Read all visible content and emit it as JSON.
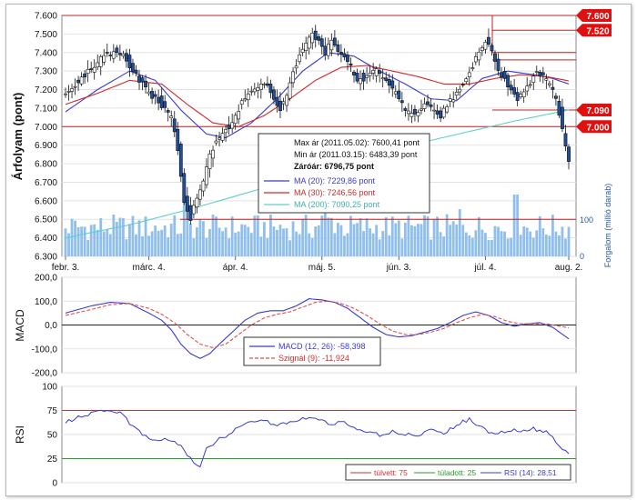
{
  "colors": {
    "candle_up": "#ffffff",
    "candle_down": "#1f4e9c",
    "ma20": "#3a3ad0",
    "ma30": "#d02a2a",
    "ma200": "#5fd0c8",
    "volume": "#8fbfea",
    "macd": "#3a3ad0",
    "signal": "#e0504a",
    "rsi": "#3a3ad0",
    "overbought": "#d03030",
    "oversold": "#2a9a2a",
    "price_tag": "#e01010"
  },
  "price_panel": {
    "ylabel": "Árfolyam (pont)",
    "y_ticks": [
      "6.300",
      "6.400",
      "6.500",
      "6.600",
      "6.700",
      "6.800",
      "6.900",
      "7.000",
      "7.100",
      "7.200",
      "7.300",
      "7.400",
      "7.500",
      "7.600"
    ],
    "x_ticks": [
      "febr. 3.",
      "márc. 4.",
      "ápr. 4.",
      "máj. 5.",
      "jún. 3.",
      "júl. 4.",
      "aug. 2."
    ],
    "volume_label": "Forgalom (millió darab)",
    "volume_ticks": [
      "0",
      "100"
    ],
    "price_tags": [
      "7.600",
      "7.520",
      "7.090",
      "7.000"
    ],
    "legend": {
      "max": "Max ár (2011.05.02): 7600,41 pont",
      "min": "Min ár (2011.03.15): 6483,39 pont",
      "close": "Záróár: 6796,75 pont",
      "ma20": "MA (20): 7229,86 pont",
      "ma30": "MA (30): 7246,56 pont",
      "ma200": "MA (200): 7090,25 pont"
    }
  },
  "macd_panel": {
    "ylabel": "MACD",
    "y_ticks": [
      "200,0",
      "100,0",
      "0,0",
      "-100,0",
      "-200,0"
    ],
    "legend": {
      "macd": "MACD (12, 26): -58,398",
      "signal": "Szignál (9): -11,924"
    }
  },
  "rsi_panel": {
    "ylabel": "RSI",
    "y_ticks": [
      "100",
      "75",
      "50",
      "25",
      "0"
    ],
    "legend": {
      "overbought": "túlvett: 75",
      "oversold": "túladott: 25",
      "rsi": "RSI (14): 28,51"
    }
  },
  "chart_data": [
    {
      "type": "candlestick",
      "x_label": "",
      "y_label": "Árfolyam (pont)",
      "ylim": [
        6300,
        7600
      ],
      "x_ticks": [
        "febr. 3.",
        "márc. 4.",
        "ápr. 4.",
        "máj. 5.",
        "jún. 3.",
        "júl. 4.",
        "aug. 2."
      ],
      "close_anchors": [
        [
          0,
          7170
        ],
        [
          3,
          7230
        ],
        [
          6,
          7280
        ],
        [
          9,
          7330
        ],
        [
          12,
          7380
        ],
        [
          15,
          7400
        ],
        [
          18,
          7390
        ],
        [
          20,
          7330
        ],
        [
          23,
          7250
        ],
        [
          26,
          7180
        ],
        [
          29,
          7140
        ],
        [
          31,
          7090
        ],
        [
          33,
          7060
        ],
        [
          35,
          6880
        ],
        [
          37,
          6600
        ],
        [
          39,
          6500
        ],
        [
          41,
          6620
        ],
        [
          43,
          6700
        ],
        [
          45,
          6840
        ],
        [
          47,
          6930
        ],
        [
          49,
          6970
        ],
        [
          51,
          6990
        ],
        [
          53,
          7060
        ],
        [
          55,
          7130
        ],
        [
          57,
          7170
        ],
        [
          59,
          7210
        ],
        [
          61,
          7220
        ],
        [
          63,
          7210
        ],
        [
          65,
          7150
        ],
        [
          67,
          7100
        ],
        [
          69,
          7180
        ],
        [
          71,
          7290
        ],
        [
          73,
          7380
        ],
        [
          75,
          7440
        ],
        [
          77,
          7500
        ],
        [
          79,
          7460
        ],
        [
          81,
          7400
        ],
        [
          83,
          7480
        ],
        [
          85,
          7420
        ],
        [
          87,
          7380
        ],
        [
          89,
          7320
        ],
        [
          91,
          7260
        ],
        [
          93,
          7260
        ],
        [
          95,
          7280
        ],
        [
          97,
          7300
        ],
        [
          99,
          7250
        ],
        [
          101,
          7220
        ],
        [
          103,
          7180
        ],
        [
          105,
          7120
        ],
        [
          107,
          7070
        ],
        [
          109,
          7060
        ],
        [
          111,
          7100
        ],
        [
          113,
          7130
        ],
        [
          115,
          7080
        ],
        [
          117,
          7060
        ],
        [
          119,
          7120
        ],
        [
          121,
          7160
        ],
        [
          123,
          7200
        ],
        [
          125,
          7260
        ],
        [
          127,
          7330
        ],
        [
          129,
          7400
        ],
        [
          131,
          7470
        ],
        [
          133,
          7420
        ],
        [
          135,
          7300
        ],
        [
          137,
          7250
        ],
        [
          139,
          7200
        ],
        [
          141,
          7140
        ],
        [
          143,
          7200
        ],
        [
          145,
          7240
        ],
        [
          147,
          7300
        ],
        [
          149,
          7270
        ],
        [
          151,
          7220
        ],
        [
          153,
          7160
        ],
        [
          155,
          6990
        ],
        [
          157,
          6800
        ]
      ],
      "n_days": 158,
      "max": 7600.41,
      "min": 6483.39,
      "close": 6796.75,
      "levels": [
        7600,
        7520,
        7400,
        7360,
        7090,
        7000,
        6500
      ]
    },
    {
      "type": "line",
      "name": "MA",
      "series": [
        {
          "name": "MA (20)",
          "anchors": [
            [
              0,
              7080
            ],
            [
              10,
              7200
            ],
            [
              20,
              7300
            ],
            [
              28,
              7250
            ],
            [
              36,
              7090
            ],
            [
              44,
              6960
            ],
            [
              50,
              6940
            ],
            [
              58,
              7020
            ],
            [
              66,
              7150
            ],
            [
              74,
              7300
            ],
            [
              82,
              7400
            ],
            [
              90,
              7380
            ],
            [
              98,
              7300
            ],
            [
              106,
              7230
            ],
            [
              114,
              7150
            ],
            [
              122,
              7140
            ],
            [
              130,
              7260
            ],
            [
              138,
              7300
            ],
            [
              146,
              7280
            ],
            [
              152,
              7260
            ],
            [
              157,
              7230
            ]
          ]
        },
        {
          "name": "MA (30)",
          "anchors": [
            [
              0,
              7120
            ],
            [
              10,
              7180
            ],
            [
              20,
              7250
            ],
            [
              30,
              7230
            ],
            [
              38,
              7120
            ],
            [
              46,
              7020
            ],
            [
              54,
              7000
            ],
            [
              62,
              7060
            ],
            [
              70,
              7150
            ],
            [
              78,
              7250
            ],
            [
              86,
              7320
            ],
            [
              94,
              7330
            ],
            [
              102,
              7300
            ],
            [
              110,
              7270
            ],
            [
              118,
              7230
            ],
            [
              126,
              7230
            ],
            [
              134,
              7260
            ],
            [
              142,
              7280
            ],
            [
              150,
              7270
            ],
            [
              157,
              7247
            ]
          ]
        },
        {
          "name": "MA (200)",
          "anchors": [
            [
              0,
              6400
            ],
            [
              20,
              6470
            ],
            [
              40,
              6560
            ],
            [
              60,
              6660
            ],
            [
              80,
              6780
            ],
            [
              100,
              6870
            ],
            [
              120,
              6950
            ],
            [
              140,
              7030
            ],
            [
              157,
              7090
            ]
          ]
        }
      ]
    },
    {
      "type": "bar",
      "name": "Forgalom",
      "y_label": "Forgalom (millió darab)",
      "ylim": [
        0,
        200
      ],
      "typical": 80
    },
    {
      "type": "line",
      "name": "MACD",
      "ylim": [
        -200,
        200
      ],
      "series": [
        {
          "name": "MACD (12, 26)",
          "anchors": [
            [
              0,
              50
            ],
            [
              8,
              80
            ],
            [
              14,
              95
            ],
            [
              20,
              90
            ],
            [
              26,
              50
            ],
            [
              30,
              20
            ],
            [
              33,
              -20
            ],
            [
              36,
              -80
            ],
            [
              39,
              -120
            ],
            [
              42,
              -140
            ],
            [
              45,
              -120
            ],
            [
              48,
              -80
            ],
            [
              52,
              -30
            ],
            [
              56,
              20
            ],
            [
              60,
              50
            ],
            [
              64,
              60
            ],
            [
              68,
              60
            ],
            [
              72,
              80
            ],
            [
              76,
              110
            ],
            [
              80,
              105
            ],
            [
              84,
              95
            ],
            [
              88,
              70
            ],
            [
              92,
              30
            ],
            [
              96,
              -10
            ],
            [
              100,
              -40
            ],
            [
              104,
              -50
            ],
            [
              108,
              -45
            ],
            [
              112,
              -30
            ],
            [
              116,
              -15
            ],
            [
              120,
              10
            ],
            [
              124,
              40
            ],
            [
              128,
              55
            ],
            [
              132,
              40
            ],
            [
              136,
              10
            ],
            [
              140,
              -5
            ],
            [
              144,
              5
            ],
            [
              148,
              10
            ],
            [
              152,
              -10
            ],
            [
              157,
              -58
            ]
          ]
        },
        {
          "name": "Szignál (9)",
          "anchors": [
            [
              0,
              40
            ],
            [
              8,
              65
            ],
            [
              14,
              85
            ],
            [
              20,
              90
            ],
            [
              26,
              70
            ],
            [
              30,
              45
            ],
            [
              34,
              10
            ],
            [
              38,
              -40
            ],
            [
              42,
              -80
            ],
            [
              46,
              -95
            ],
            [
              50,
              -80
            ],
            [
              54,
              -40
            ],
            [
              58,
              0
            ],
            [
              62,
              30
            ],
            [
              66,
              45
            ],
            [
              70,
              55
            ],
            [
              74,
              75
            ],
            [
              78,
              95
            ],
            [
              82,
              100
            ],
            [
              86,
              90
            ],
            [
              90,
              70
            ],
            [
              94,
              40
            ],
            [
              98,
              5
            ],
            [
              102,
              -25
            ],
            [
              106,
              -40
            ],
            [
              110,
              -40
            ],
            [
              114,
              -30
            ],
            [
              118,
              -15
            ],
            [
              122,
              10
            ],
            [
              126,
              30
            ],
            [
              130,
              45
            ],
            [
              134,
              35
            ],
            [
              138,
              15
            ],
            [
              142,
              5
            ],
            [
              146,
              5
            ],
            [
              150,
              5
            ],
            [
              154,
              -5
            ],
            [
              157,
              -12
            ]
          ]
        }
      ]
    },
    {
      "type": "line",
      "name": "RSI",
      "ylim": [
        0,
        100
      ],
      "overbought": 75,
      "oversold": 25,
      "series": [
        {
          "name": "RSI (14)",
          "anchors": [
            [
              0,
              63
            ],
            [
              4,
              68
            ],
            [
              8,
              72
            ],
            [
              12,
              74
            ],
            [
              16,
              74
            ],
            [
              18,
              72
            ],
            [
              20,
              60
            ],
            [
              24,
              50
            ],
            [
              28,
              45
            ],
            [
              32,
              44
            ],
            [
              36,
              40
            ],
            [
              38,
              30
            ],
            [
              40,
              20
            ],
            [
              42,
              18
            ],
            [
              44,
              35
            ],
            [
              46,
              40
            ],
            [
              48,
              45
            ],
            [
              50,
              48
            ],
            [
              54,
              58
            ],
            [
              58,
              63
            ],
            [
              62,
              64
            ],
            [
              66,
              60
            ],
            [
              70,
              63
            ],
            [
              74,
              66
            ],
            [
              78,
              68
            ],
            [
              82,
              61
            ],
            [
              86,
              63
            ],
            [
              90,
              57
            ],
            [
              94,
              54
            ],
            [
              98,
              49
            ],
            [
              102,
              53
            ],
            [
              106,
              50
            ],
            [
              110,
              48
            ],
            [
              114,
              55
            ],
            [
              118,
              51
            ],
            [
              122,
              60
            ],
            [
              126,
              66
            ],
            [
              130,
              57
            ],
            [
              134,
              49
            ],
            [
              138,
              55
            ],
            [
              142,
              53
            ],
            [
              146,
              56
            ],
            [
              150,
              52
            ],
            [
              154,
              40
            ],
            [
              157,
              29
            ]
          ]
        }
      ]
    }
  ]
}
